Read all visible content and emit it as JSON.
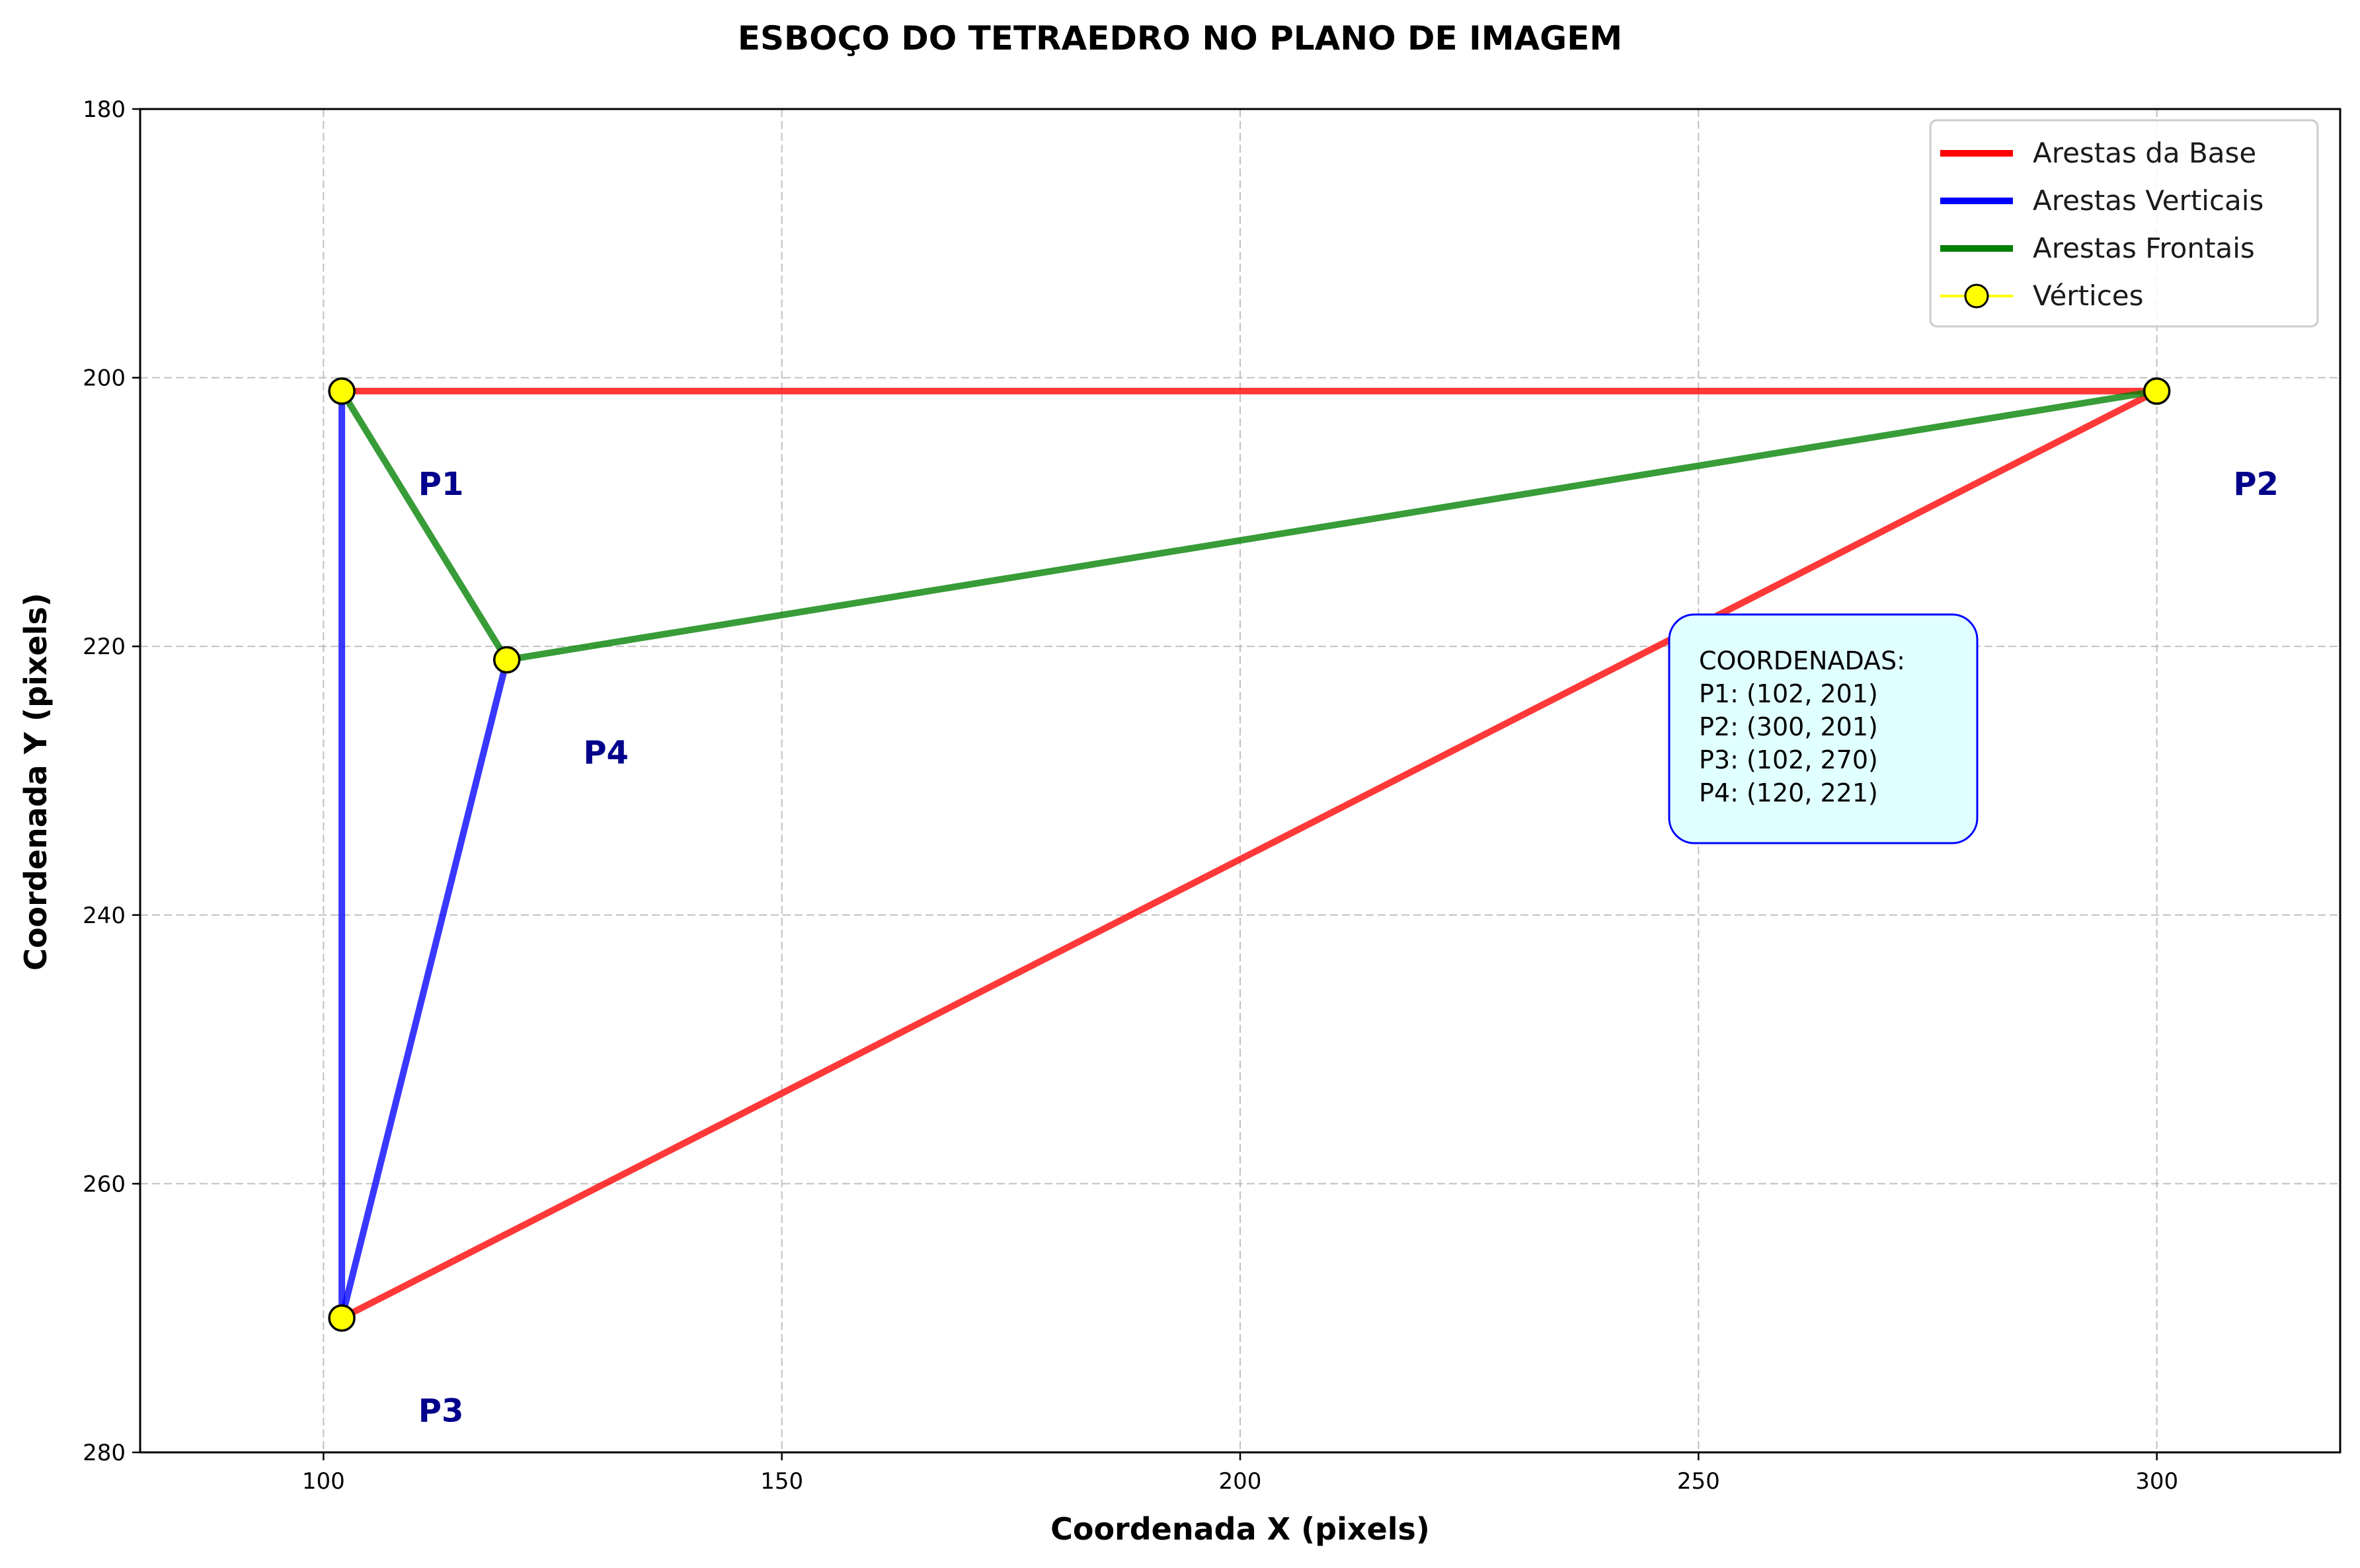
{
  "chart_data": {
    "type": "line",
    "title": "ESBOÇO DO TETRAEDRO NO PLANO DE IMAGEM",
    "xlabel": "Coordenada X (pixels)",
    "ylabel": "Coordenada Y (pixels)",
    "xlim": [
      80,
      320
    ],
    "ylim": [
      280,
      180
    ],
    "y_inverted": true,
    "xticks": [
      100,
      150,
      200,
      250,
      300
    ],
    "yticks": [
      180,
      200,
      220,
      240,
      260,
      280
    ],
    "grid": true,
    "legend_position": "upper right",
    "series": [
      {
        "name": "Arestas da Base",
        "color": "#ff0000",
        "segments": [
          [
            [
              102,
              201
            ],
            [
              300,
              201
            ]
          ],
          [
            [
              300,
              201
            ],
            [
              102,
              270
            ]
          ]
        ]
      },
      {
        "name": "Arestas Verticais",
        "color": "#0000ff",
        "segments": [
          [
            [
              102,
              201
            ],
            [
              102,
              270
            ]
          ],
          [
            [
              102,
              270
            ],
            [
              120,
              221
            ]
          ]
        ]
      },
      {
        "name": "Arestas Frontais",
        "color": "#008000",
        "segments": [
          [
            [
              102,
              201
            ],
            [
              120,
              221
            ]
          ],
          [
            [
              120,
              221
            ],
            [
              300,
              201
            ]
          ]
        ]
      }
    ],
    "vertices": {
      "name": "Vértices",
      "color": "#ffff00",
      "points": [
        {
          "label": "P1",
          "x": 102,
          "y": 201
        },
        {
          "label": "P2",
          "x": 300,
          "y": 201
        },
        {
          "label": "P3",
          "x": 102,
          "y": 270
        },
        {
          "label": "P4",
          "x": 120,
          "y": 221
        }
      ]
    },
    "annotation": {
      "lines": [
        "COORDENADAS:",
        "P1: (102, 201)",
        "P2: (300, 201)",
        "P3: (102, 270)",
        "P4: (120, 221)"
      ]
    }
  }
}
